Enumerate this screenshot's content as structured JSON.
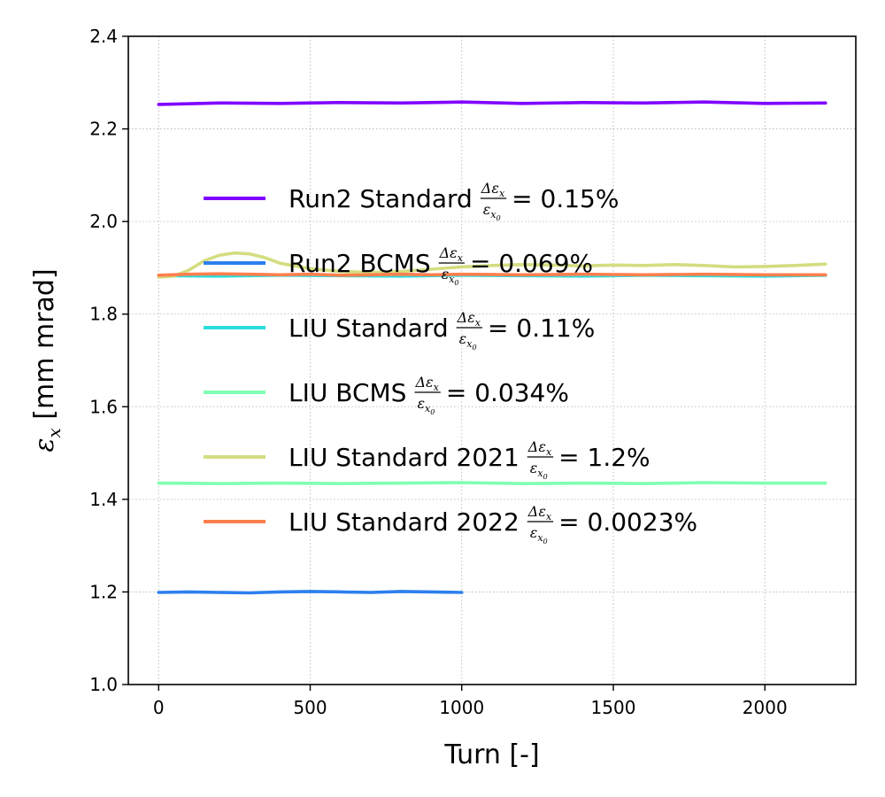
{
  "chart_data": {
    "type": "line",
    "xlabel": "Turn [-]",
    "ylabel_symbol": "ε",
    "ylabel_sub": "x",
    "ylabel_unit": " [mm mrad]",
    "xlim": [
      -100,
      2300
    ],
    "ylim": [
      1.0,
      2.4
    ],
    "xticks": [
      0,
      500,
      1000,
      1500,
      2000
    ],
    "yticks": [
      1.0,
      1.2,
      1.4,
      1.6,
      1.8,
      2.0,
      2.2,
      2.4
    ],
    "grid": true,
    "legend_position": "upper-left",
    "legend_fraction": {
      "num": "Δε",
      "num_sub": "x",
      "den": "ε",
      "den_sub": "x",
      "den_sub2": "0"
    },
    "series": [
      {
        "name": "Run2 Standard",
        "percent": "0.15%",
        "color": "#8000ff",
        "x": [
          0,
          200,
          400,
          600,
          800,
          1000,
          1200,
          1400,
          1600,
          1800,
          2000,
          2200
        ],
        "y": [
          2.253,
          2.256,
          2.255,
          2.257,
          2.256,
          2.258,
          2.255,
          2.257,
          2.256,
          2.258,
          2.255,
          2.256
        ]
      },
      {
        "name": "Run2 BCMS",
        "percent": "0.069%",
        "color": "#2c7fef",
        "x": [
          0,
          100,
          200,
          300,
          400,
          500,
          600,
          700,
          800,
          900,
          1000
        ],
        "y": [
          1.199,
          1.2,
          1.199,
          1.198,
          1.2,
          1.201,
          1.2,
          1.199,
          1.201,
          1.2,
          1.199
        ]
      },
      {
        "name": "LIU Standard",
        "percent": "0.11%",
        "color": "#2adddd",
        "x": [
          0,
          200,
          400,
          600,
          800,
          1000,
          1200,
          1400,
          1600,
          1800,
          2000,
          2200
        ],
        "y": [
          1.883,
          1.882,
          1.884,
          1.883,
          1.882,
          1.884,
          1.883,
          1.882,
          1.884,
          1.883,
          1.882,
          1.884
        ]
      },
      {
        "name": "LIU BCMS",
        "percent": "0.034%",
        "color": "#80ffb4",
        "x": [
          0,
          200,
          400,
          600,
          800,
          1000,
          1200,
          1400,
          1600,
          1800,
          2000,
          2200
        ],
        "y": [
          1.435,
          1.434,
          1.435,
          1.434,
          1.435,
          1.436,
          1.434,
          1.435,
          1.434,
          1.436,
          1.435,
          1.435
        ]
      },
      {
        "name": "LIU Standard 2021",
        "percent": "1.2%",
        "color": "#d4dd80",
        "x": [
          0,
          50,
          100,
          150,
          200,
          250,
          300,
          350,
          400,
          500,
          600,
          700,
          800,
          900,
          1000,
          1100,
          1200,
          1300,
          1400,
          1500,
          1600,
          1700,
          1800,
          1900,
          2000,
          2100,
          2200
        ],
        "y": [
          1.88,
          1.882,
          1.895,
          1.915,
          1.927,
          1.932,
          1.93,
          1.922,
          1.91,
          1.898,
          1.892,
          1.89,
          1.892,
          1.897,
          1.902,
          1.905,
          1.907,
          1.906,
          1.904,
          1.906,
          1.905,
          1.907,
          1.905,
          1.902,
          1.903,
          1.905,
          1.908
        ]
      },
      {
        "name": "LIU Standard 2022",
        "percent": "0.0023%",
        "color": "#ff7f4e",
        "x": [
          0,
          100,
          200,
          300,
          400,
          500,
          600,
          700,
          800,
          900,
          1000,
          1200,
          1400,
          1600,
          1800,
          2000,
          2200
        ],
        "y": [
          1.884,
          1.886,
          1.887,
          1.886,
          1.885,
          1.886,
          1.884,
          1.885,
          1.886,
          1.885,
          1.886,
          1.885,
          1.886,
          1.885,
          1.886,
          1.885,
          1.885
        ]
      }
    ]
  }
}
